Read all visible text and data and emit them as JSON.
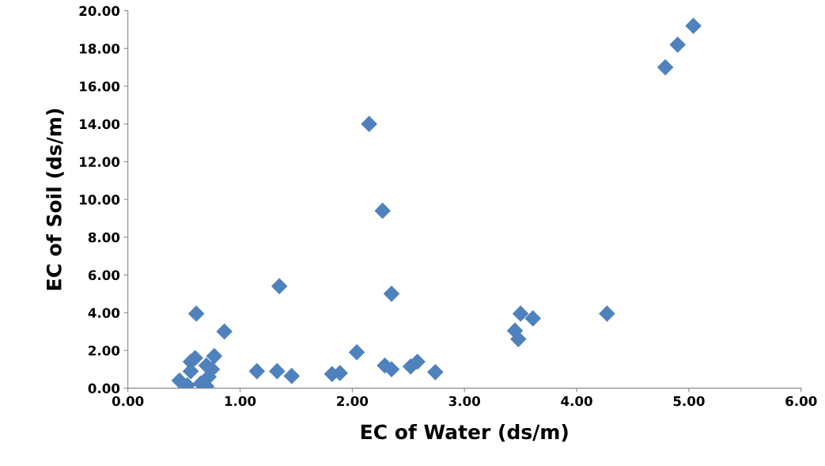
{
  "chart_data": {
    "type": "scatter",
    "xlabel": "EC of Water (ds/m)",
    "ylabel": "EC of Soil (ds/m)",
    "xlim": [
      0,
      6
    ],
    "ylim": [
      0,
      20
    ],
    "xticks": [
      {
        "value": 0,
        "label": "0.00"
      },
      {
        "value": 1,
        "label": "1.00"
      },
      {
        "value": 2,
        "label": "2.00"
      },
      {
        "value": 3,
        "label": "3.00"
      },
      {
        "value": 4,
        "label": "4.00"
      },
      {
        "value": 5,
        "label": "5.00"
      },
      {
        "value": 6,
        "label": "6.00"
      }
    ],
    "yticks": [
      {
        "value": 0,
        "label": "0.00"
      },
      {
        "value": 2,
        "label": "2.00"
      },
      {
        "value": 4,
        "label": "4.00"
      },
      {
        "value": 6,
        "label": "6.00"
      },
      {
        "value": 8,
        "label": "8.00"
      },
      {
        "value": 10,
        "label": "10.00"
      },
      {
        "value": 12,
        "label": "12.00"
      },
      {
        "value": 14,
        "label": "14.00"
      },
      {
        "value": 16,
        "label": "16.00"
      },
      {
        "value": 18,
        "label": "18.00"
      },
      {
        "value": 20,
        "label": "20.00"
      }
    ],
    "marker": "diamond",
    "grid": false,
    "legend": false,
    "series": [
      {
        "color": "#4f81bd",
        "x": [
          5.04,
          4.9,
          4.79,
          2.15,
          2.27,
          1.35,
          2.35,
          0.61,
          0.86,
          0.77,
          1.15,
          1.33,
          1.46,
          1.82,
          1.89,
          2.04,
          2.29,
          2.35,
          2.52,
          2.58,
          2.74,
          3.45,
          3.48,
          3.5,
          3.61,
          4.27,
          0.6,
          0.56,
          0.49,
          0.46,
          0.63,
          0.72,
          0.75,
          0.7,
          0.58,
          0.53,
          0.65,
          0.56,
          0.7
        ],
        "values": [
          19.2,
          18.2,
          17.0,
          14.0,
          9.4,
          5.4,
          5.0,
          3.95,
          3.0,
          1.7,
          0.9,
          0.9,
          0.65,
          0.75,
          0.8,
          1.9,
          1.2,
          1.0,
          1.15,
          1.4,
          0.85,
          3.05,
          2.6,
          3.95,
          3.7,
          3.95,
          1.6,
          1.4,
          null,
          0.4,
          null,
          0.6,
          1.0,
          1.2,
          null,
          0.15,
          0.25,
          0.9,
          0.1
        ]
      }
    ]
  }
}
